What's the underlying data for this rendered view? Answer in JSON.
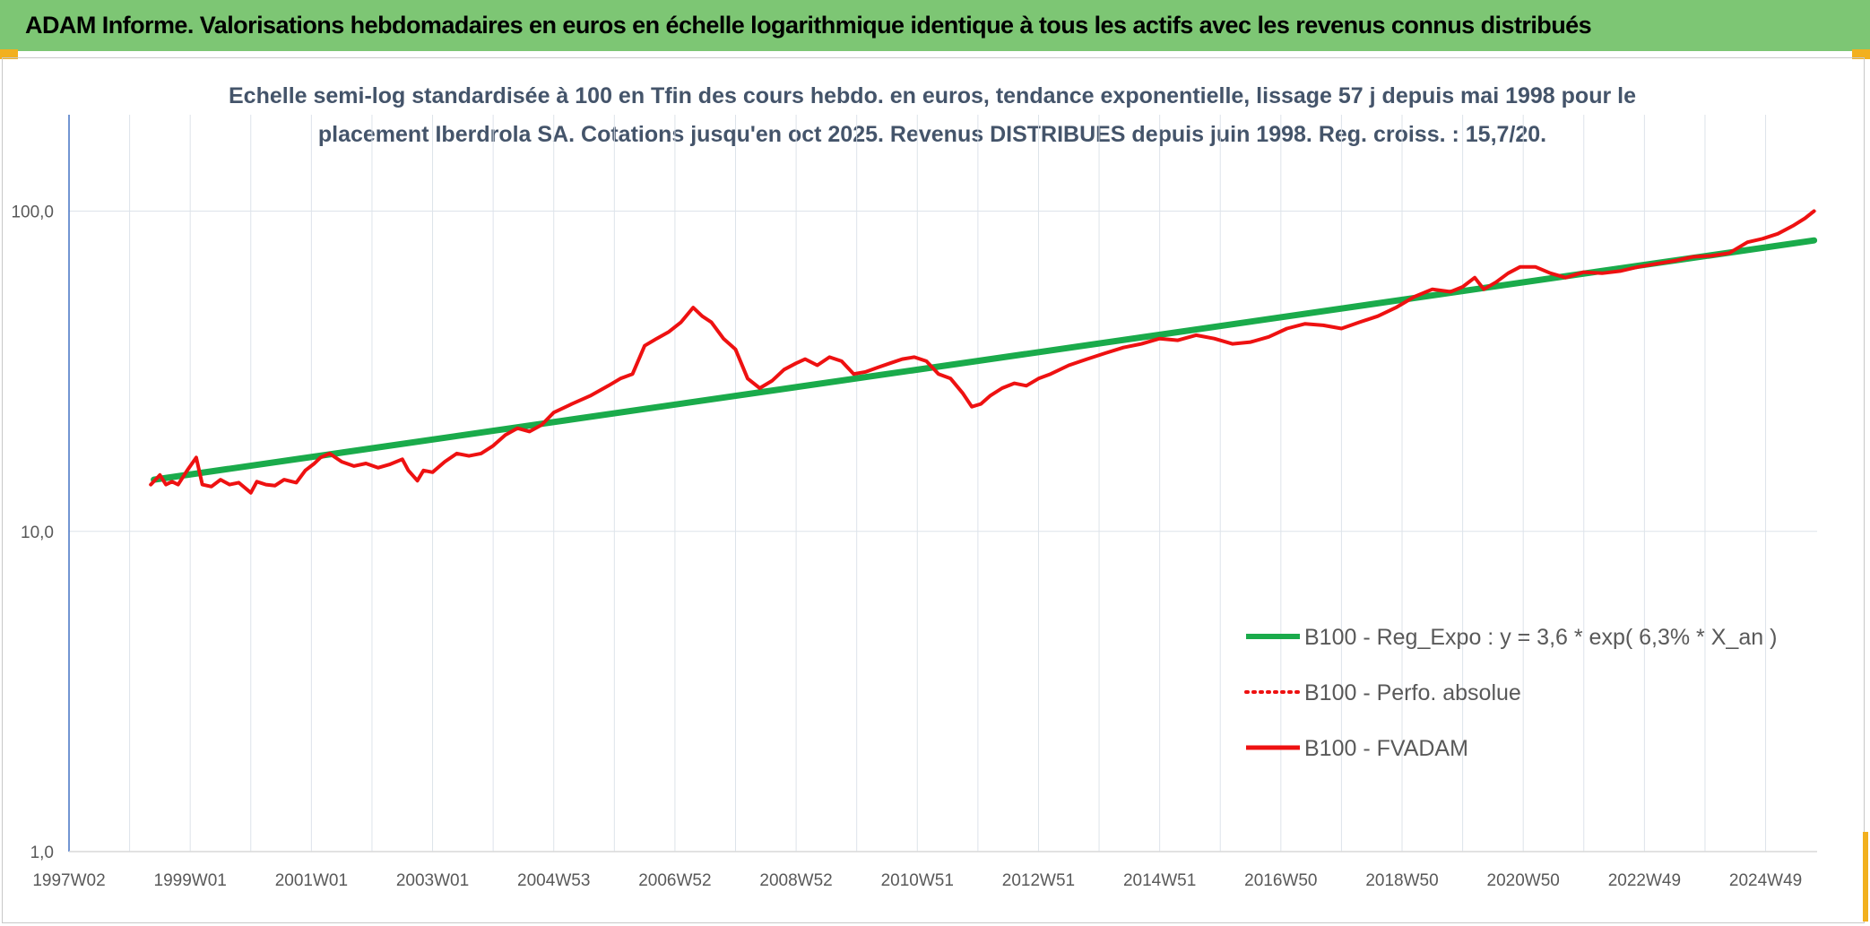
{
  "header": {
    "title": "ADAM Informe. Valorisations hebdomadaires en euros en échelle logarithmique identique à tous les actifs avec les revenus connus distribués"
  },
  "colors": {
    "banner": "#7dc674",
    "regression": "#1aab4b",
    "fvadam": "#ee1111",
    "perfo": "#ee1111",
    "title_text": "#44546a",
    "grid": "#dde3ea",
    "axis": "#4472c4",
    "corner_accent": "#f2b01e"
  },
  "chart_data": {
    "type": "line",
    "title_lines": [
      "Echelle semi-log standardisée à 100 en Tfin des cours hebdo. en euros, tendance exponentielle, lissage 57 j depuis mai 1998 pour le",
      "placement Iberdrola SA. Cotations jusqu'en oct 2025. Revenus DISTRIBUES depuis juin 1998. Reg. croiss. : 15,7/20."
    ],
    "y_scale": "log",
    "ylim": [
      1,
      200
    ],
    "y_ticks": [
      "1,0",
      "10,0",
      "100,0"
    ],
    "xlim": [
      1997.0,
      2025.85
    ],
    "x_tick_labels": [
      "1997W02",
      "1999W01",
      "2001W01",
      "2003W01",
      "2004W53",
      "2006W52",
      "2008W52",
      "2010W51",
      "2012W51",
      "2014W51",
      "2016W50",
      "2018W50",
      "2020W50",
      "2022W49",
      "2024W49"
    ],
    "x_tick_years": [
      1997.0,
      1999.0,
      2001.0,
      2003.0,
      2005.0,
      2007.0,
      2009.0,
      2011.0,
      2013.0,
      2015.0,
      2017.0,
      2019.0,
      2021.0,
      2023.0,
      2025.0
    ],
    "grid": true,
    "legend_position": "bottom-right",
    "legend": [
      {
        "key": "regression",
        "label": "B100 - Reg_Expo : y = 3,6 * exp( 6,3% *  X_an )",
        "style": "solid"
      },
      {
        "key": "perfo",
        "label": "B100 - Perfo. absolue",
        "style": "dotted"
      },
      {
        "key": "fvadam",
        "label": "B100 - FVADAM",
        "style": "solid"
      }
    ],
    "series": [
      {
        "key": "regression",
        "name": "B100 - Reg_Expo : y = 3,6 * exp( 6,3% *  X_an )",
        "x": [
          1998.4,
          2025.8
        ],
        "y": [
          14.5,
          81
        ]
      },
      {
        "key": "fvadam",
        "name": "B100 - FVADAM",
        "x": [
          1998.35,
          1998.5,
          1998.6,
          1998.7,
          1998.8,
          1998.95,
          1999.1,
          1999.2,
          1999.35,
          1999.5,
          1999.65,
          1999.8,
          2000.0,
          2000.1,
          2000.25,
          2000.4,
          2000.55,
          2000.75,
          2000.9,
          2001.05,
          2001.15,
          2001.3,
          2001.5,
          2001.7,
          2001.9,
          2002.1,
          2002.3,
          2002.5,
          2002.6,
          2002.75,
          2002.85,
          2003.0,
          2003.2,
          2003.4,
          2003.6,
          2003.8,
          2004.0,
          2004.2,
          2004.4,
          2004.6,
          2004.8,
          2005.0,
          2005.3,
          2005.6,
          2005.9,
          2006.1,
          2006.3,
          2006.5,
          2006.7,
          2006.9,
          2007.1,
          2007.3,
          2007.45,
          2007.6,
          2007.8,
          2008.0,
          2008.2,
          2008.4,
          2008.6,
          2008.8,
          2009.0,
          2009.15,
          2009.35,
          2009.55,
          2009.75,
          2009.95,
          2010.15,
          2010.35,
          2010.55,
          2010.75,
          2010.95,
          2011.15,
          2011.35,
          2011.55,
          2011.75,
          2011.9,
          2012.05,
          2012.2,
          2012.4,
          2012.6,
          2012.8,
          2013.0,
          2013.2,
          2013.5,
          2013.8,
          2014.1,
          2014.4,
          2014.7,
          2015.0,
          2015.3,
          2015.6,
          2015.9,
          2016.2,
          2016.5,
          2016.8,
          2017.1,
          2017.4,
          2017.7,
          2018.0,
          2018.3,
          2018.6,
          2018.9,
          2019.2,
          2019.5,
          2019.8,
          2020.0,
          2020.2,
          2020.35,
          2020.55,
          2020.75,
          2020.95,
          2021.2,
          2021.45,
          2021.7,
          2022.0,
          2022.3,
          2022.6,
          2022.9,
          2023.2,
          2023.5,
          2023.8,
          2024.1,
          2024.4,
          2024.7,
          2024.95,
          2025.2,
          2025.45,
          2025.65,
          2025.8
        ],
        "y": [
          14.0,
          15.0,
          14.0,
          14.3,
          14.0,
          15.5,
          17.0,
          14.0,
          13.8,
          14.5,
          14.0,
          14.2,
          13.2,
          14.3,
          14.0,
          13.9,
          14.5,
          14.2,
          15.5,
          16.3,
          17.0,
          17.5,
          16.5,
          16.0,
          16.3,
          15.8,
          16.2,
          16.8,
          15.5,
          14.4,
          15.5,
          15.3,
          16.5,
          17.5,
          17.2,
          17.5,
          18.5,
          20.0,
          21.0,
          20.5,
          21.5,
          23.5,
          25.0,
          26.5,
          28.5,
          30.0,
          31.0,
          38.0,
          40.0,
          42.0,
          45.0,
          50.0,
          47.0,
          45.0,
          40.0,
          37.0,
          30.0,
          28.0,
          29.5,
          32.0,
          33.5,
          34.5,
          33.0,
          35.0,
          34.0,
          31.0,
          31.5,
          32.5,
          33.5,
          34.5,
          35.0,
          34.0,
          31.0,
          30.0,
          27.0,
          24.5,
          25.0,
          26.5,
          28.0,
          29.0,
          28.5,
          30.0,
          31.0,
          33.0,
          34.5,
          36.0,
          37.5,
          38.5,
          40.0,
          39.5,
          41.0,
          40.0,
          38.5,
          39.0,
          40.5,
          43.0,
          44.5,
          44.0,
          43.0,
          45.0,
          47.0,
          50.0,
          54.0,
          57.0,
          56.0,
          58.0,
          62.0,
          57.0,
          60.0,
          64.0,
          67.0,
          67.0,
          64.0,
          62.0,
          64.5,
          64.0,
          65.0,
          67.0,
          68.5,
          70.0,
          72.0,
          72.5,
          74.0,
          80.0,
          82.0,
          85.0,
          90.0,
          95.0,
          100.0
        ]
      },
      {
        "key": "perfo",
        "name": "B100 - Perfo. absolue",
        "x": [],
        "y": []
      }
    ]
  }
}
